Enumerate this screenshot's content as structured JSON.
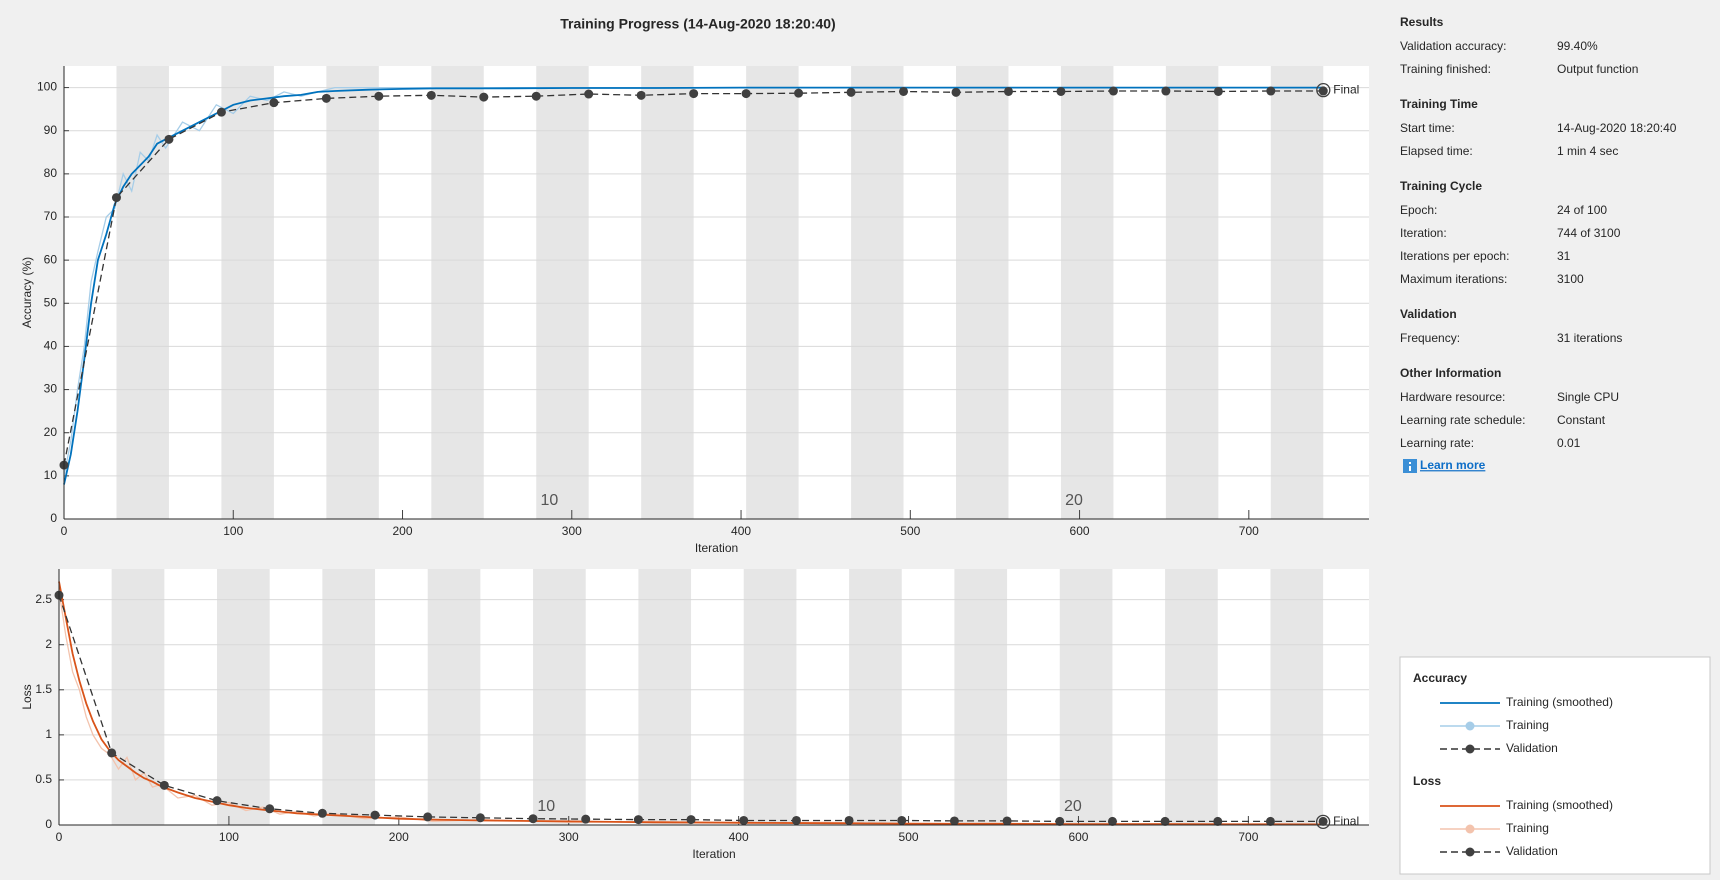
{
  "title": "Training Progress (14-Aug-2020 18:20:40)",
  "chart_data": [
    {
      "type": "line",
      "ylabel": "Accuracy (%)",
      "xlabel": "Iteration",
      "legend_title": "Accuracy",
      "xlim": [
        0,
        771
      ],
      "ylim": [
        0,
        105
      ],
      "xticks": [
        0,
        100,
        200,
        300,
        400,
        500,
        600,
        700
      ],
      "yticks": [
        0,
        10,
        20,
        30,
        40,
        50,
        60,
        70,
        80,
        90,
        100
      ],
      "grid": true,
      "epochs": 24,
      "iterations_per_epoch": 31,
      "epoch_labels": [
        10,
        20
      ],
      "final": {
        "label": "Final",
        "x": 744,
        "value": 99.4
      },
      "series": [
        {
          "name": "Training (smoothed)",
          "color": "#0072bd",
          "line": "solid",
          "marker": false,
          "x": [
            0,
            4,
            8,
            12,
            16,
            20,
            25,
            30,
            35,
            40,
            45,
            50,
            55,
            60,
            70,
            80,
            90,
            100,
            110,
            120,
            130,
            140,
            150,
            160,
            180,
            200,
            220,
            250,
            300,
            350,
            400,
            450,
            500,
            550,
            600,
            650,
            700,
            744
          ],
          "values": [
            8,
            15,
            25,
            37,
            50,
            60,
            66,
            73,
            77,
            80,
            82,
            84,
            87,
            88,
            90,
            92,
            94,
            96,
            97,
            97.5,
            98,
            98.3,
            99,
            99.2,
            99.5,
            99.7,
            99.8,
            99.8,
            99.9,
            99.9,
            100,
            100,
            100,
            100,
            100,
            100,
            100,
            100
          ]
        },
        {
          "name": "Training",
          "color": "#a6cde8",
          "line": "solid",
          "marker": false,
          "x": [
            0,
            4,
            8,
            12,
            16,
            20,
            25,
            30,
            35,
            40,
            45,
            50,
            55,
            60,
            70,
            80,
            90,
            100,
            110,
            120,
            130,
            140,
            150,
            160,
            180,
            200,
            220,
            250,
            300,
            350,
            400,
            450,
            500,
            550,
            600,
            650,
            700,
            744
          ],
          "values": [
            10,
            18,
            30,
            40,
            55,
            62,
            70,
            72,
            80,
            76,
            85,
            83,
            89,
            86,
            92,
            90,
            96,
            94,
            98,
            97,
            99,
            98,
            99,
            100,
            100,
            100,
            100,
            100,
            100,
            100,
            100,
            100,
            100,
            100,
            100,
            100,
            100,
            100
          ]
        },
        {
          "name": "Validation",
          "color": "#333333",
          "line": "dashed",
          "marker": true,
          "x": [
            0,
            31,
            62,
            93,
            124,
            155,
            186,
            217,
            248,
            279,
            310,
            341,
            372,
            403,
            434,
            465,
            496,
            527,
            558,
            589,
            620,
            651,
            682,
            713,
            744
          ],
          "values": [
            12.5,
            74.5,
            88,
            94.3,
            96.5,
            97.5,
            98,
            98.2,
            97.8,
            98,
            98.5,
            98.2,
            98.6,
            98.6,
            98.7,
            98.9,
            99.1,
            98.9,
            99.1,
            99.1,
            99.2,
            99.2,
            99.1,
            99.2,
            99.2
          ]
        }
      ]
    },
    {
      "type": "line",
      "ylabel": "Loss",
      "xlabel": "Iteration",
      "legend_title": "Loss",
      "xlim": [
        0,
        771
      ],
      "ylim": [
        0,
        2.84
      ],
      "xticks": [
        0,
        100,
        200,
        300,
        400,
        500,
        600,
        700
      ],
      "yticks": [
        0,
        0.5,
        1,
        1.5,
        2,
        2.5
      ],
      "grid": true,
      "epochs": 24,
      "iterations_per_epoch": 31,
      "epoch_labels": [
        10,
        20
      ],
      "final": {
        "label": "Final",
        "x": 744,
        "value": 0.035
      },
      "series": [
        {
          "name": "Training (smoothed)",
          "color": "#d95319",
          "line": "solid",
          "marker": false,
          "x": [
            0,
            4,
            8,
            12,
            16,
            20,
            25,
            30,
            35,
            40,
            45,
            50,
            55,
            60,
            70,
            80,
            90,
            100,
            110,
            120,
            130,
            140,
            150,
            160,
            180,
            200,
            220,
            250,
            300,
            350,
            400,
            450,
            500,
            550,
            600,
            650,
            700,
            744
          ],
          "values": [
            2.7,
            2.3,
            1.9,
            1.6,
            1.35,
            1.15,
            0.95,
            0.82,
            0.72,
            0.65,
            0.58,
            0.52,
            0.48,
            0.43,
            0.36,
            0.3,
            0.26,
            0.22,
            0.19,
            0.17,
            0.15,
            0.13,
            0.12,
            0.11,
            0.09,
            0.07,
            0.06,
            0.05,
            0.04,
            0.03,
            0.025,
            0.02,
            0.015,
            0.012,
            0.01,
            0.01,
            0.008,
            0.007
          ]
        },
        {
          "name": "Training",
          "color": "#f3c3ad",
          "line": "solid",
          "marker": false,
          "x": [
            0,
            4,
            8,
            12,
            16,
            20,
            25,
            30,
            35,
            40,
            45,
            50,
            55,
            60,
            70,
            80,
            90,
            100,
            110,
            120,
            130,
            140,
            150,
            160,
            180,
            200,
            220,
            250,
            300,
            350,
            400,
            450,
            500,
            550,
            600,
            650,
            700,
            744
          ],
          "values": [
            2.6,
            2.1,
            1.7,
            1.5,
            1.2,
            1.0,
            0.85,
            0.78,
            0.62,
            0.75,
            0.5,
            0.58,
            0.42,
            0.45,
            0.3,
            0.33,
            0.22,
            0.25,
            0.16,
            0.2,
            0.12,
            0.15,
            0.1,
            0.13,
            0.07,
            0.09,
            0.04,
            0.06,
            0.03,
            0.04,
            0.02,
            0.03,
            0.01,
            0.02,
            0.01,
            0.015,
            0.005,
            0.01
          ]
        },
        {
          "name": "Validation",
          "color": "#333333",
          "line": "dashed",
          "marker": true,
          "x": [
            0,
            31,
            62,
            93,
            124,
            155,
            186,
            217,
            248,
            279,
            310,
            341,
            372,
            403,
            434,
            465,
            496,
            527,
            558,
            589,
            620,
            651,
            682,
            713,
            744
          ],
          "values": [
            2.55,
            0.8,
            0.44,
            0.27,
            0.18,
            0.13,
            0.11,
            0.09,
            0.08,
            0.07,
            0.065,
            0.06,
            0.06,
            0.05,
            0.05,
            0.05,
            0.05,
            0.045,
            0.045,
            0.04,
            0.04,
            0.04,
            0.04,
            0.04,
            0.04
          ]
        }
      ]
    }
  ],
  "info_panel": {
    "sections": [
      {
        "title": "Results",
        "rows": [
          {
            "label": "Validation accuracy:",
            "value": "99.40%"
          },
          {
            "label": "Training finished:",
            "value": "Output function"
          }
        ]
      },
      {
        "title": "Training Time",
        "rows": [
          {
            "label": "Start time:",
            "value": "14-Aug-2020 18:20:40"
          },
          {
            "label": "Elapsed time:",
            "value": "1 min 4 sec"
          }
        ]
      },
      {
        "title": "Training Cycle",
        "rows": [
          {
            "label": "Epoch:",
            "value": "24 of 100"
          },
          {
            "label": "Iteration:",
            "value": "744 of 3100"
          },
          {
            "label": "Iterations per epoch:",
            "value": "31"
          },
          {
            "label": "Maximum iterations:",
            "value": "3100"
          }
        ]
      },
      {
        "title": "Validation",
        "rows": [
          {
            "label": "Frequency:",
            "value": "31 iterations"
          }
        ]
      },
      {
        "title": "Other Information",
        "rows": [
          {
            "label": "Hardware resource:",
            "value": "Single CPU"
          },
          {
            "label": "Learning rate schedule:",
            "value": "Constant"
          },
          {
            "label": "Learning rate:",
            "value": "0.01"
          }
        ]
      }
    ],
    "link": "Learn more"
  }
}
